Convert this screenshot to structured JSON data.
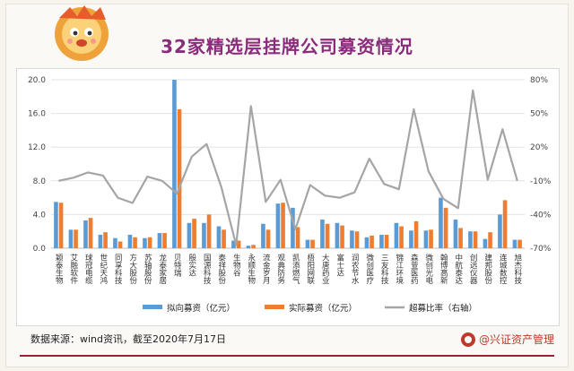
{
  "header": {
    "title": "32家精选层挂牌公司募资情况"
  },
  "footer": {
    "source": "数据来源：wind资讯，截至2020年7月17日",
    "brand": "@兴证资产管理"
  },
  "colors": {
    "planned": "#5b9bd5",
    "actual": "#ed7d31",
    "ratio": "#a5a5a5",
    "title": "#8a2b7c",
    "brand": "#c0392b"
  },
  "chart_data": {
    "type": "bar",
    "categories": [
      "颖泰生物",
      "艾融软件",
      "球冠电缆",
      "世纪天鸿",
      "同享科技",
      "方大股份",
      "苏轴股份",
      "龙泰家居",
      "贝特瑞",
      "殷实达",
      "国源科技",
      "泰祥股份",
      "生物谷",
      "永顺生物",
      "流金岁月",
      "观典防务",
      "凯添燃气",
      "梧阳网联",
      "大唐药业",
      "富士达",
      "润农节水",
      "微创医疗",
      "三友科技",
      "锦江环境",
      "森萱医药",
      "微创光电",
      "翰博高新",
      "中航泰达",
      "创远仪器",
      "建邦股份",
      "连城数控",
      "旭杰科技"
    ],
    "series": [
      {
        "name": "拟向募资（亿元）",
        "axis": "left",
        "values": [
          5.5,
          2.2,
          3.3,
          1.6,
          1.2,
          1.6,
          1.2,
          1.8,
          20.0,
          3.0,
          3.0,
          2.6,
          0.9,
          0.3,
          2.9,
          5.3,
          4.8,
          1.0,
          3.4,
          3.0,
          2.1,
          1.3,
          1.6,
          3.0,
          2.1,
          2.1,
          6.0,
          3.4,
          2.0,
          1.1,
          4.0,
          1.0
        ]
      },
      {
        "name": "实际募资（亿元）",
        "axis": "right",
        "values": [
          5.4,
          2.2,
          3.6,
          1.9,
          0.8,
          1.3,
          1.3,
          1.8,
          16.5,
          3.5,
          4.0,
          2.2,
          0.9,
          0.4,
          2.2,
          5.4,
          2.5,
          1.0,
          2.9,
          2.7,
          2.0,
          1.5,
          1.6,
          2.6,
          3.2,
          2.2,
          4.8,
          2.4,
          2.0,
          1.9,
          5.7,
          1.0
        ]
      },
      {
        "name": "超募比率（右轴）",
        "type": "line",
        "values": [
          -6,
          -3,
          2,
          -1,
          -22,
          -27,
          -2,
          -6,
          -18,
          17,
          29,
          -12,
          -67,
          65,
          -26,
          -5,
          -52,
          -10,
          -20,
          -22,
          -17,
          15,
          -9,
          -14,
          62,
          3,
          -23,
          -32,
          80,
          -5,
          43,
          -6
        ]
      }
    ],
    "left_axis": {
      "ylim": [
        0,
        20
      ],
      "ticks": [
        "0.0",
        "4.0",
        "8.0",
        "12.0",
        "16.0",
        "20.0"
      ]
    },
    "right_axis": {
      "ylim": [
        -70,
        90
      ],
      "ticks": [
        "-70%",
        "-40%",
        "-10%",
        "20%",
        "50%",
        "80%"
      ]
    },
    "legend": [
      {
        "label": "拟向募资（亿元）",
        "type": "bar"
      },
      {
        "label": "实际募资（亿元）",
        "type": "bar"
      },
      {
        "label": "超募比率（右轴）",
        "type": "line"
      }
    ],
    "grid": true,
    "legend_position": "bottom"
  }
}
